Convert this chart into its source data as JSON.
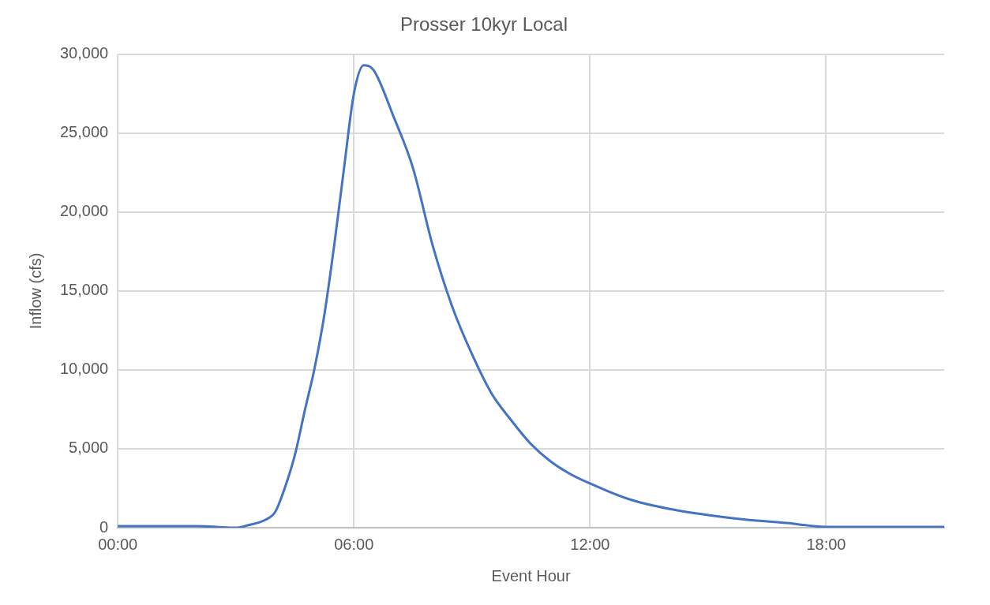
{
  "chart_data": {
    "type": "line",
    "title": "Prosser 10kyr Local",
    "xlabel": "Event Hour",
    "ylabel": "Inflow (cfs)",
    "x": [
      0,
      1,
      2,
      2.5,
      3,
      3.3,
      3.75,
      4,
      4.2,
      4.5,
      4.75,
      5,
      5.25,
      5.5,
      5.75,
      6,
      6.25,
      6.5,
      7,
      7.5,
      8,
      8.5,
      9,
      9.5,
      10,
      10.5,
      11,
      11.5,
      12,
      13,
      14,
      15,
      16,
      17,
      18,
      19,
      20,
      21
    ],
    "series": [
      {
        "color": "#4472c4",
        "values": [
          100,
          100,
          100,
          50,
          0,
          150,
          500,
          1000,
          2200,
          4600,
          7400,
          10100,
          13500,
          17900,
          22800,
          27500,
          29300,
          29000,
          26100,
          22800,
          17900,
          14000,
          11000,
          8500,
          6800,
          5300,
          4200,
          3400,
          2800,
          1800,
          1200,
          800,
          500,
          300,
          50,
          50,
          50,
          50
        ]
      }
    ],
    "xlim": [
      0,
      21
    ],
    "xticks": [
      {
        "value": 0,
        "label": "00:00"
      },
      {
        "value": 6,
        "label": "06:00"
      },
      {
        "value": 12,
        "label": "12:00"
      },
      {
        "value": 18,
        "label": "18:00"
      }
    ],
    "ylim": [
      0,
      30000
    ],
    "yticks": [
      {
        "value": 0,
        "label": "0"
      },
      {
        "value": 5000,
        "label": "5,000"
      },
      {
        "value": 10000,
        "label": "10,000"
      },
      {
        "value": 15000,
        "label": "15,000"
      },
      {
        "value": 20000,
        "label": "20,000"
      },
      {
        "value": 25000,
        "label": "25,000"
      },
      {
        "value": 30000,
        "label": "30,000"
      }
    ],
    "grid": true,
    "legend": false,
    "marker": "none",
    "line_style": "solid"
  }
}
